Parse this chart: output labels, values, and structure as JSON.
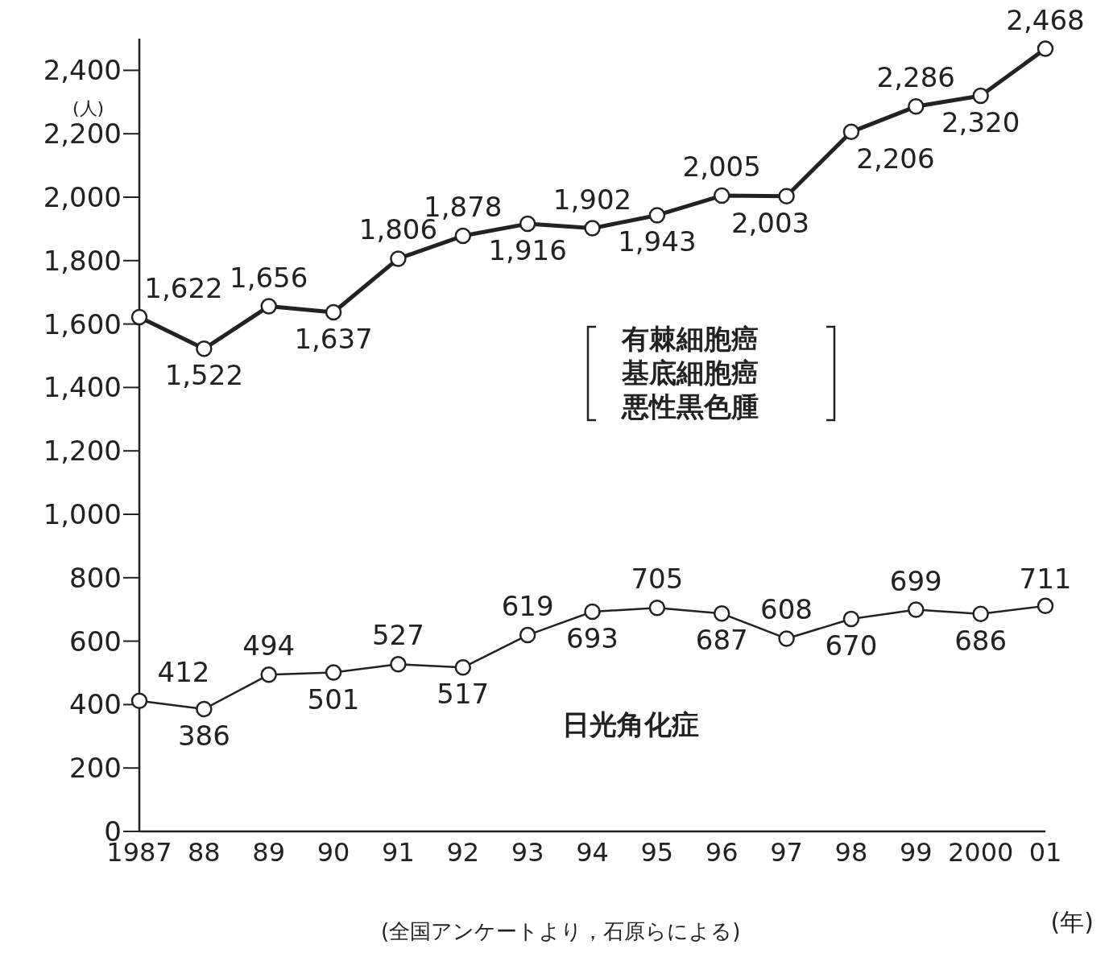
{
  "chart_data": {
    "type": "line",
    "ylabel": "(人)",
    "xlabel": "(年)",
    "categories": [
      "1987",
      "88",
      "89",
      "90",
      "91",
      "92",
      "93",
      "94",
      "95",
      "96",
      "97",
      "98",
      "99",
      "2000",
      "01"
    ],
    "series": [
      {
        "name": "有棘細胞癌基底細胞癌悪性黒色腫",
        "color": "#222222",
        "values": [
          1622,
          1522,
          1656,
          1637,
          1806,
          1878,
          1916,
          1902,
          1943,
          2005,
          2003,
          2206,
          2286,
          2320,
          2468
        ],
        "value_labels": [
          "1,622",
          "1,522",
          "1,656",
          "1,637",
          "1,806",
          "1,878",
          "1,916",
          "1,902",
          "1,943",
          "2,005",
          "2,003",
          "2,206",
          "2,286",
          "2,320",
          "2,468"
        ]
      },
      {
        "name": "日光角化症",
        "color": "#222222",
        "values": [
          412,
          386,
          494,
          501,
          527,
          517,
          619,
          693,
          705,
          687,
          608,
          670,
          699,
          686,
          711
        ],
        "value_labels": [
          "412",
          "386",
          "494",
          "501",
          "527",
          "517",
          "619",
          "693",
          "705",
          "687",
          "608",
          "670",
          "699",
          "686",
          "711"
        ]
      }
    ],
    "ylim": [
      0,
      2500
    ],
    "yticks": [
      0,
      200,
      400,
      600,
      800,
      {
        "value": 1000,
        "label": "1,000"
      },
      {
        "value": 1200,
        "label": "1,200"
      },
      {
        "value": 1400,
        "label": "1,400"
      },
      {
        "value": 1600,
        "label": "1,600"
      },
      {
        "value": 1800,
        "label": "1,800"
      },
      {
        "value": 2000,
        "label": "2,000"
      },
      {
        "value": 2200,
        "label": "2,200"
      },
      {
        "value": 2400,
        "label": "2,400"
      }
    ],
    "marker": "circle",
    "line_style": "solid",
    "grid": false,
    "legend": false,
    "annotations": [
      "(全国アンケートより，石原らによる)"
    ]
  }
}
